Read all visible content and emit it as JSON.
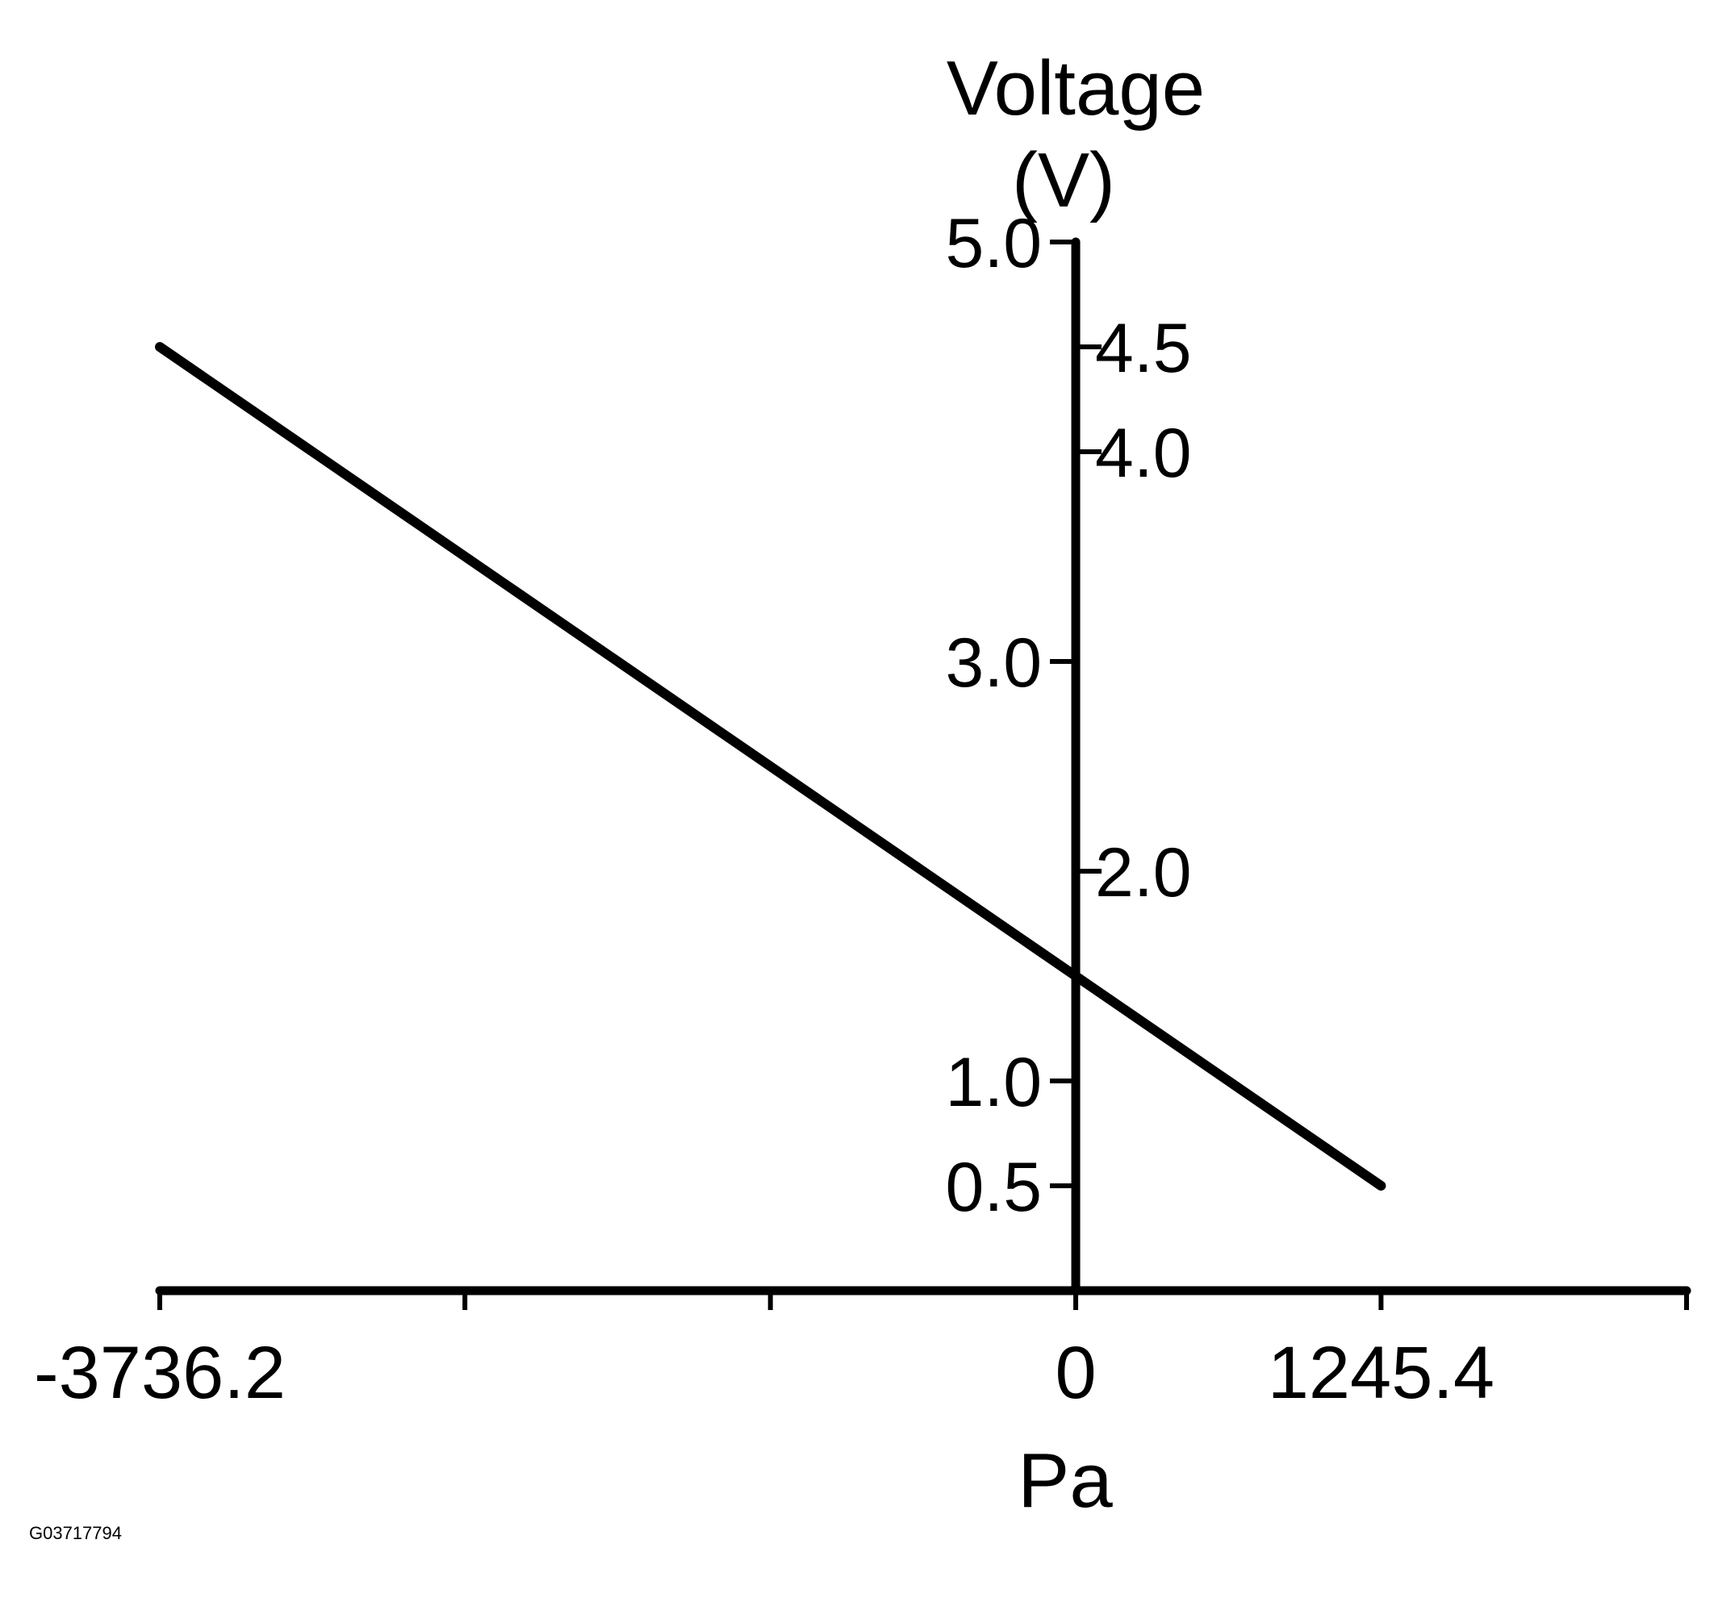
{
  "chart_data": {
    "type": "line",
    "title": "",
    "ylabel_line1": "Voltage",
    "ylabel_line2": "(V)",
    "xlabel": "Pa",
    "xlim": [
      -3736.2,
      2491.6
    ],
    "ylim": [
      0,
      5.0
    ],
    "x_ticks": [
      -3736.2,
      -2491.6,
      -1245.4,
      0,
      1245.4,
      2491.6
    ],
    "x_tick_labels": [
      {
        "value": -3736.2,
        "label": "-3736.2"
      },
      {
        "value": 0,
        "label": "0"
      },
      {
        "value": 1245.4,
        "label": "1245.4"
      }
    ],
    "y_ticks_left": [
      {
        "value": 5.0,
        "label": "5.0"
      },
      {
        "value": 3.0,
        "label": "3.0"
      },
      {
        "value": 1.0,
        "label": "1.0"
      },
      {
        "value": 0.5,
        "label": "0.5"
      }
    ],
    "y_ticks_right": [
      {
        "value": 4.5,
        "label": "4.5"
      },
      {
        "value": 4.0,
        "label": "4.0"
      },
      {
        "value": 2.0,
        "label": "2.0"
      }
    ],
    "series": [
      {
        "color": "#000000",
        "points": [
          {
            "x": -3736.2,
            "y": 4.5
          },
          {
            "x": 1245.4,
            "y": 0.5
          }
        ]
      }
    ],
    "grid": false
  },
  "figure_code": "G03717794"
}
